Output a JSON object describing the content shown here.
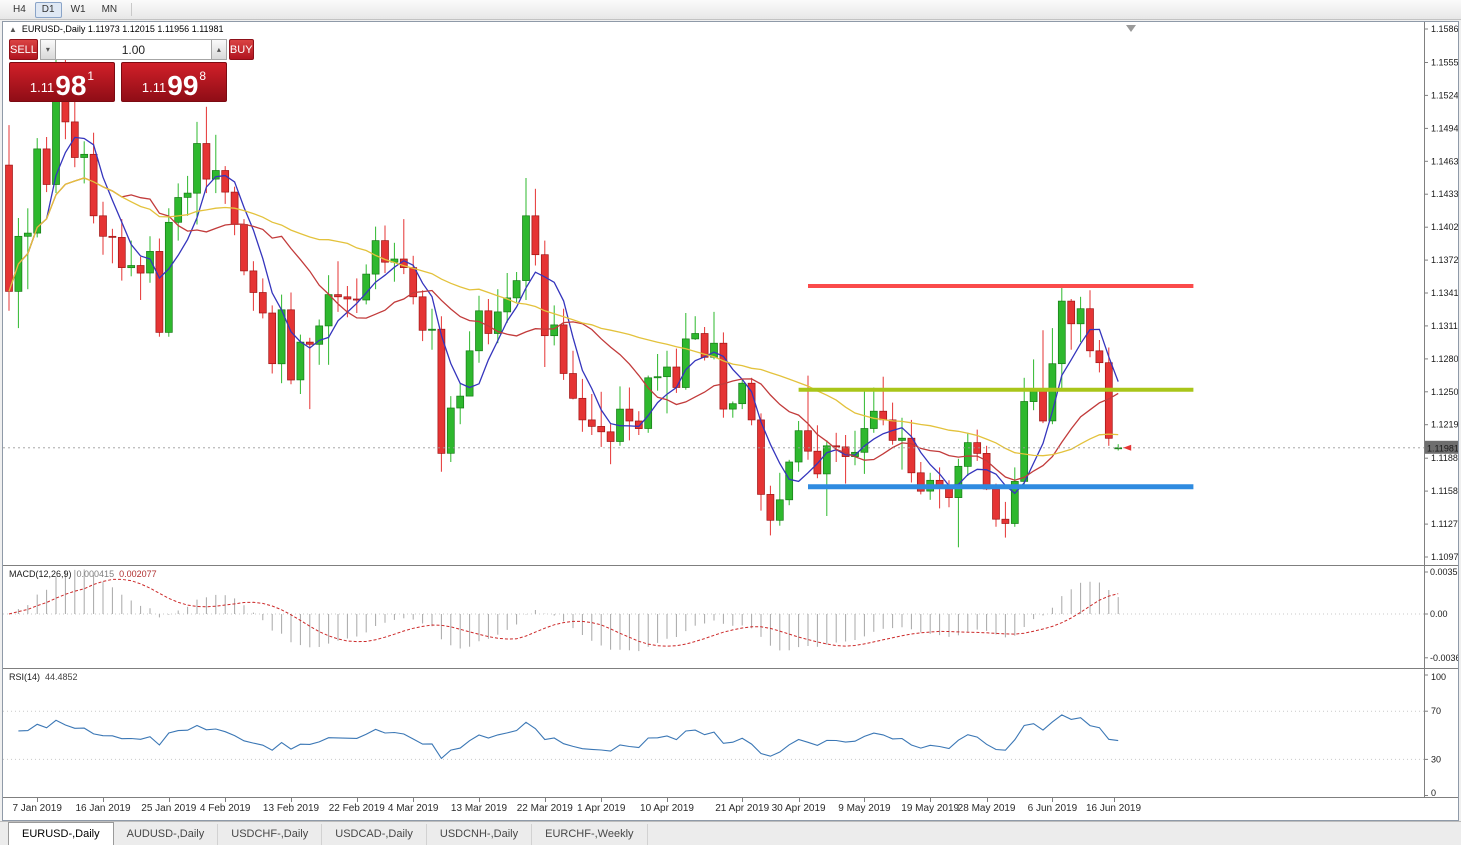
{
  "toolbar": {
    "timeframes": [
      {
        "label": "H4",
        "active": false
      },
      {
        "label": "D1",
        "active": true
      },
      {
        "label": "W1",
        "active": false
      },
      {
        "label": "MN",
        "active": false
      }
    ]
  },
  "chart": {
    "title": "EURUSD-,Daily 1.11973 1.12015 1.11956 1.11981",
    "current_price": "1.11981",
    "one_click": {
      "sell_label": "SELL",
      "buy_label": "BUY",
      "volume": "1.00",
      "sell_price": {
        "prefix": "1.11",
        "main": "98",
        "sup": "1"
      },
      "buy_price": {
        "prefix": "1.11",
        "main": "99",
        "sup": "8"
      }
    }
  },
  "chart_data": {
    "type": "candlestick",
    "symbol": "EURUSD",
    "timeframe": "Daily",
    "price_range": [
      1.10896,
      1.15925
    ],
    "price_axis_labels": [
      "1.15860",
      "1.15550",
      "1.15245",
      "1.14940",
      "1.14635",
      "1.14330",
      "1.14025",
      "1.13720",
      "1.13415",
      "1.13110",
      "1.12805",
      "1.12500",
      "1.12195",
      "1.11885",
      "1.11580",
      "1.11275",
      "1.10970"
    ],
    "colors": {
      "bull": "#2eb82e",
      "bear": "#e53434",
      "bull_edge": "#157a15",
      "bear_edge": "#9e1414"
    },
    "candles": [
      [
        1.146,
        1.1497,
        1.1325,
        1.1343
      ],
      [
        1.1343,
        1.1411,
        1.1309,
        1.1394
      ],
      [
        1.1394,
        1.142,
        1.1345,
        1.1397
      ],
      [
        1.1397,
        1.1485,
        1.1393,
        1.1475
      ],
      [
        1.1475,
        1.1486,
        1.1435,
        1.1442
      ],
      [
        1.1442,
        1.157,
        1.1434,
        1.1544
      ],
      [
        1.1544,
        1.1558,
        1.1484,
        1.15
      ],
      [
        1.15,
        1.1541,
        1.1458,
        1.1467
      ],
      [
        1.1467,
        1.1482,
        1.1443,
        1.147
      ],
      [
        1.147,
        1.149,
        1.1406,
        1.1413
      ],
      [
        1.1413,
        1.1426,
        1.1377,
        1.1394
      ],
      [
        1.1394,
        1.1401,
        1.1369,
        1.1393
      ],
      [
        1.1393,
        1.141,
        1.1353,
        1.1365
      ],
      [
        1.1365,
        1.139,
        1.1357,
        1.1367
      ],
      [
        1.1367,
        1.1375,
        1.1335,
        1.136
      ],
      [
        1.136,
        1.1394,
        1.1351,
        1.138
      ],
      [
        1.138,
        1.1392,
        1.1301,
        1.1305
      ],
      [
        1.1305,
        1.142,
        1.1301,
        1.1407
      ],
      [
        1.1407,
        1.1443,
        1.139,
        1.143
      ],
      [
        1.143,
        1.145,
        1.1413,
        1.1434
      ],
      [
        1.1434,
        1.15,
        1.1405,
        1.148
      ],
      [
        1.148,
        1.1514,
        1.1434,
        1.1447
      ],
      [
        1.1447,
        1.1488,
        1.1434,
        1.1455
      ],
      [
        1.1455,
        1.1459,
        1.1424,
        1.1435
      ],
      [
        1.1435,
        1.144,
        1.1395,
        1.1405
      ],
      [
        1.1405,
        1.141,
        1.1358,
        1.1362
      ],
      [
        1.1362,
        1.1371,
        1.1325,
        1.1342
      ],
      [
        1.1342,
        1.1355,
        1.1318,
        1.1323
      ],
      [
        1.1323,
        1.133,
        1.1267,
        1.1276
      ],
      [
        1.1276,
        1.134,
        1.1258,
        1.1326
      ],
      [
        1.1326,
        1.1342,
        1.1257,
        1.1261
      ],
      [
        1.1261,
        1.1303,
        1.1248,
        1.1296
      ],
      [
        1.1296,
        1.13,
        1.1234,
        1.1294
      ],
      [
        1.1294,
        1.1317,
        1.1275,
        1.1311
      ],
      [
        1.1311,
        1.1358,
        1.1275,
        1.134
      ],
      [
        1.134,
        1.1371,
        1.1324,
        1.1338
      ],
      [
        1.1338,
        1.1348,
        1.1319,
        1.1336
      ],
      [
        1.1336,
        1.1355,
        1.1323,
        1.1335
      ],
      [
        1.1335,
        1.1368,
        1.1331,
        1.1359
      ],
      [
        1.1359,
        1.1403,
        1.1345,
        1.139
      ],
      [
        1.139,
        1.1404,
        1.136,
        1.137
      ],
      [
        1.137,
        1.1388,
        1.1352,
        1.1373
      ],
      [
        1.1373,
        1.141,
        1.1359,
        1.1365
      ],
      [
        1.1365,
        1.1376,
        1.1331,
        1.1338
      ],
      [
        1.1338,
        1.1344,
        1.1297,
        1.1307
      ],
      [
        1.1307,
        1.1327,
        1.1289,
        1.1308
      ],
      [
        1.1308,
        1.132,
        1.1176,
        1.1193
      ],
      [
        1.1193,
        1.1246,
        1.1185,
        1.1235
      ],
      [
        1.1235,
        1.1258,
        1.122,
        1.1246
      ],
      [
        1.1246,
        1.1306,
        1.1246,
        1.1288
      ],
      [
        1.1288,
        1.1339,
        1.1277,
        1.1325
      ],
      [
        1.1325,
        1.1336,
        1.1294,
        1.1304
      ],
      [
        1.1304,
        1.1345,
        1.1295,
        1.1324
      ],
      [
        1.1324,
        1.136,
        1.1314,
        1.1337
      ],
      [
        1.1337,
        1.1361,
        1.1333,
        1.1353
      ],
      [
        1.1353,
        1.1448,
        1.1335,
        1.1413
      ],
      [
        1.1413,
        1.1438,
        1.1367,
        1.1377
      ],
      [
        1.1377,
        1.139,
        1.1273,
        1.1302
      ],
      [
        1.1302,
        1.133,
        1.1293,
        1.1312
      ],
      [
        1.1312,
        1.1327,
        1.1261,
        1.1267
      ],
      [
        1.1267,
        1.1288,
        1.1243,
        1.1244
      ],
      [
        1.1244,
        1.1262,
        1.1213,
        1.1224
      ],
      [
        1.1224,
        1.1248,
        1.121,
        1.1218
      ],
      [
        1.1218,
        1.125,
        1.1199,
        1.1213
      ],
      [
        1.1213,
        1.122,
        1.1183,
        1.1204
      ],
      [
        1.1204,
        1.1255,
        1.12,
        1.1234
      ],
      [
        1.1234,
        1.1254,
        1.1205,
        1.1223
      ],
      [
        1.1223,
        1.1232,
        1.121,
        1.1216
      ],
      [
        1.1216,
        1.1265,
        1.1212,
        1.1263
      ],
      [
        1.1263,
        1.1285,
        1.1251,
        1.1264
      ],
      [
        1.1264,
        1.1288,
        1.123,
        1.1273
      ],
      [
        1.1273,
        1.129,
        1.1249,
        1.1254
      ],
      [
        1.1254,
        1.1323,
        1.1252,
        1.1299
      ],
      [
        1.1299,
        1.132,
        1.1298,
        1.1304
      ],
      [
        1.1304,
        1.131,
        1.1279,
        1.1282
      ],
      [
        1.1282,
        1.1324,
        1.128,
        1.1295
      ],
      [
        1.1295,
        1.1305,
        1.1226,
        1.1234
      ],
      [
        1.1234,
        1.1241,
        1.1226,
        1.1239
      ],
      [
        1.1239,
        1.1262,
        1.1234,
        1.1258
      ],
      [
        1.1258,
        1.1263,
        1.1219,
        1.1224
      ],
      [
        1.1224,
        1.123,
        1.114,
        1.1155
      ],
      [
        1.1155,
        1.1163,
        1.1117,
        1.1131
      ],
      [
        1.1131,
        1.1175,
        1.1126,
        1.115
      ],
      [
        1.115,
        1.1187,
        1.1145,
        1.1185
      ],
      [
        1.1185,
        1.1223,
        1.1176,
        1.1214
      ],
      [
        1.1214,
        1.1265,
        1.1187,
        1.1195
      ],
      [
        1.1195,
        1.1219,
        1.117,
        1.1174
      ],
      [
        1.1174,
        1.1205,
        1.1135,
        1.12
      ],
      [
        1.12,
        1.1212,
        1.1185,
        1.1199
      ],
      [
        1.1199,
        1.121,
        1.1165,
        1.119
      ],
      [
        1.119,
        1.1214,
        1.1182,
        1.1194
      ],
      [
        1.1194,
        1.1251,
        1.1174,
        1.1216
      ],
      [
        1.1216,
        1.1254,
        1.1212,
        1.1232
      ],
      [
        1.1232,
        1.1264,
        1.1219,
        1.1224
      ],
      [
        1.1224,
        1.124,
        1.1201,
        1.1205
      ],
      [
        1.1205,
        1.1226,
        1.1178,
        1.1207
      ],
      [
        1.1207,
        1.1224,
        1.1166,
        1.1175
      ],
      [
        1.1175,
        1.1185,
        1.1155,
        1.1158
      ],
      [
        1.1158,
        1.1175,
        1.115,
        1.1168
      ],
      [
        1.1168,
        1.118,
        1.1142,
        1.1162
      ],
      [
        1.1162,
        1.1168,
        1.1143,
        1.1152
      ],
      [
        1.1152,
        1.1188,
        1.1106,
        1.1181
      ],
      [
        1.1181,
        1.1212,
        1.1172,
        1.1203
      ],
      [
        1.1203,
        1.1215,
        1.1186,
        1.1193
      ],
      [
        1.1193,
        1.12,
        1.1159,
        1.116
      ],
      [
        1.116,
        1.1165,
        1.1125,
        1.1132
      ],
      [
        1.1132,
        1.1148,
        1.1115,
        1.1128
      ],
      [
        1.1128,
        1.118,
        1.1125,
        1.1167
      ],
      [
        1.1167,
        1.1263,
        1.116,
        1.1241
      ],
      [
        1.1241,
        1.128,
        1.1233,
        1.1252
      ],
      [
        1.1252,
        1.1307,
        1.1221,
        1.1223
      ],
      [
        1.1223,
        1.1309,
        1.122,
        1.1276
      ],
      [
        1.1276,
        1.1348,
        1.1251,
        1.1334
      ],
      [
        1.1334,
        1.1336,
        1.1289,
        1.1313
      ],
      [
        1.1313,
        1.1338,
        1.1296,
        1.1327
      ],
      [
        1.1327,
        1.1344,
        1.1282,
        1.1288
      ],
      [
        1.1288,
        1.1298,
        1.1268,
        1.1277
      ],
      [
        1.1277,
        1.1291,
        1.12,
        1.1207
      ],
      [
        1.11973,
        1.12015,
        1.11956,
        1.11981
      ]
    ],
    "date_labels": [
      {
        "text": "7 Jan 2019",
        "index": 3
      },
      {
        "text": "16 Jan 2019",
        "index": 10
      },
      {
        "text": "25 Jan 2019",
        "index": 17
      },
      {
        "text": "4 Feb 2019",
        "index": 23
      },
      {
        "text": "13 Feb 2019",
        "index": 30
      },
      {
        "text": "22 Feb 2019",
        "index": 37
      },
      {
        "text": "4 Mar 2019",
        "index": 43
      },
      {
        "text": "13 Mar 2019",
        "index": 50
      },
      {
        "text": "22 Mar 2019",
        "index": 57
      },
      {
        "text": "1 Apr 2019",
        "index": 63
      },
      {
        "text": "10 Apr 2019",
        "index": 70
      },
      {
        "text": "21 Apr 2019",
        "index": 78
      },
      {
        "text": "30 Apr 2019",
        "index": 84
      },
      {
        "text": "9 May 2019",
        "index": 91
      },
      {
        "text": "19 May 2019",
        "index": 98
      },
      {
        "text": "28 May 2019",
        "index": 104
      },
      {
        "text": "6 Jun 2019",
        "index": 111
      },
      {
        "text": "16 Jun 2019",
        "index": 117.5
      }
    ],
    "moving_averages": [
      {
        "period": 5,
        "color": "#3535bd"
      },
      {
        "period": 13,
        "color": "#c23b3b"
      },
      {
        "period": 34,
        "color": "#e3c23c"
      }
    ],
    "levels": [
      {
        "price": 1.1348,
        "from_index": 85,
        "to_index": 126,
        "color": "#fb4b4b",
        "width": 4
      },
      {
        "price": 1.1252,
        "from_index": 84,
        "to_index": 126,
        "color": "#a9c519",
        "width": 4
      },
      {
        "price": 1.1162,
        "from_index": 85,
        "to_index": 126,
        "color": "#2f8be0",
        "width": 5
      }
    ],
    "macd": {
      "label": "MACD(12,26,9)",
      "value_main": "0.000415",
      "value_signal": "0.002077",
      "axis_labels": [
        "0.003518",
        "0.00",
        "-0.00367"
      ],
      "histogram_color": "#a8a8a8",
      "signal_color": "#cc2929"
    },
    "rsi": {
      "label": "RSI(14)",
      "value": "44.4852",
      "period": 14,
      "axis_labels": [
        "100",
        "70",
        "30",
        "0"
      ],
      "levels": [
        70,
        30
      ],
      "line_color": "#3b77b5"
    }
  },
  "tabs": [
    {
      "label": "EURUSD-,Daily",
      "active": true
    },
    {
      "label": "AUDUSD-,Daily",
      "active": false
    },
    {
      "label": "USDCHF-,Daily",
      "active": false
    },
    {
      "label": "USDCAD-,Daily",
      "active": false
    },
    {
      "label": "USDCNH-,Daily",
      "active": false
    },
    {
      "label": "EURCHF-,Weekly",
      "active": false
    }
  ]
}
